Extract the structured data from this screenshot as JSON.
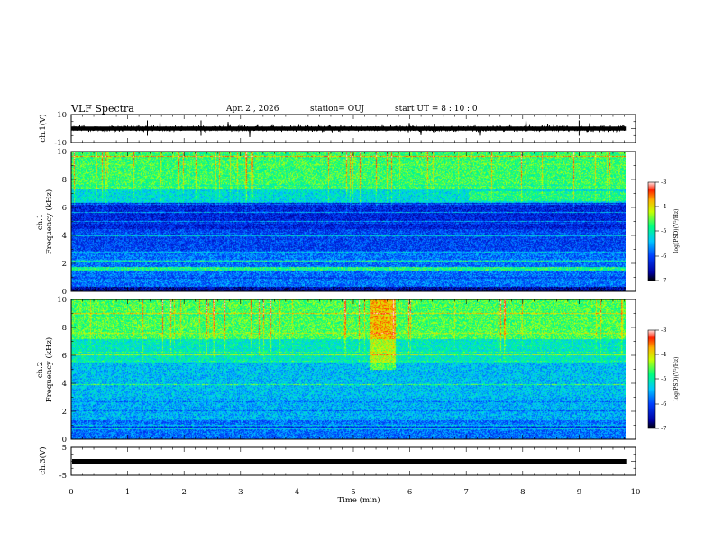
{
  "header": {
    "title": "VLF Spectra",
    "date": "Apr. 2 , 2026",
    "station": "station= OUJ",
    "start_ut": "start UT = 8 : 10 : 0"
  },
  "chart_data": [
    {
      "type": "line",
      "panel": "ch1-waveform",
      "ylabel": "ch.1(V)",
      "ylim": [
        -10,
        10
      ],
      "y_ticks": [
        "10",
        "-10"
      ],
      "baseline": 0,
      "trace_color": "#000000"
    },
    {
      "type": "heatmap",
      "panel": "ch1-spectrogram",
      "ylabel_line1": "ch.1",
      "ylabel_line2": "Frequency (kHz)",
      "ylim": [
        0,
        10
      ],
      "y_ticks": [
        "0",
        "2",
        "4",
        "6",
        "8",
        "10"
      ],
      "colorbar": {
        "label": "log(PSD)(V²/Hz)",
        "range": [
          -7,
          -3
        ],
        "ticks": [
          "-3",
          "-4",
          "-5",
          "-6",
          "-7"
        ]
      }
    },
    {
      "type": "heatmap",
      "panel": "ch2-spectrogram",
      "ylabel_line1": "ch.2",
      "ylabel_line2": "Frequency (kHz)",
      "ylim": [
        0,
        10
      ],
      "y_ticks": [
        "0",
        "2",
        "4",
        "6",
        "8",
        "10"
      ],
      "colorbar": {
        "label": "log(PSD)(V²/Hz)",
        "range": [
          -7,
          -3
        ],
        "ticks": [
          "-3",
          "-4",
          "-5",
          "-6",
          "-7"
        ]
      }
    },
    {
      "type": "line",
      "panel": "ch3-waveform",
      "ylabel": "ch.3(V)",
      "ylim": [
        -5,
        5
      ],
      "y_ticks": [
        "5",
        "-5"
      ],
      "baseline": 0,
      "trace_color": "#000000"
    }
  ],
  "xaxis": {
    "label": "Time (min)",
    "range": [
      0,
      10
    ],
    "ticks": [
      "0",
      "1",
      "2",
      "3",
      "4",
      "5",
      "6",
      "7",
      "8",
      "9",
      "10"
    ],
    "data_end": 9.82
  }
}
